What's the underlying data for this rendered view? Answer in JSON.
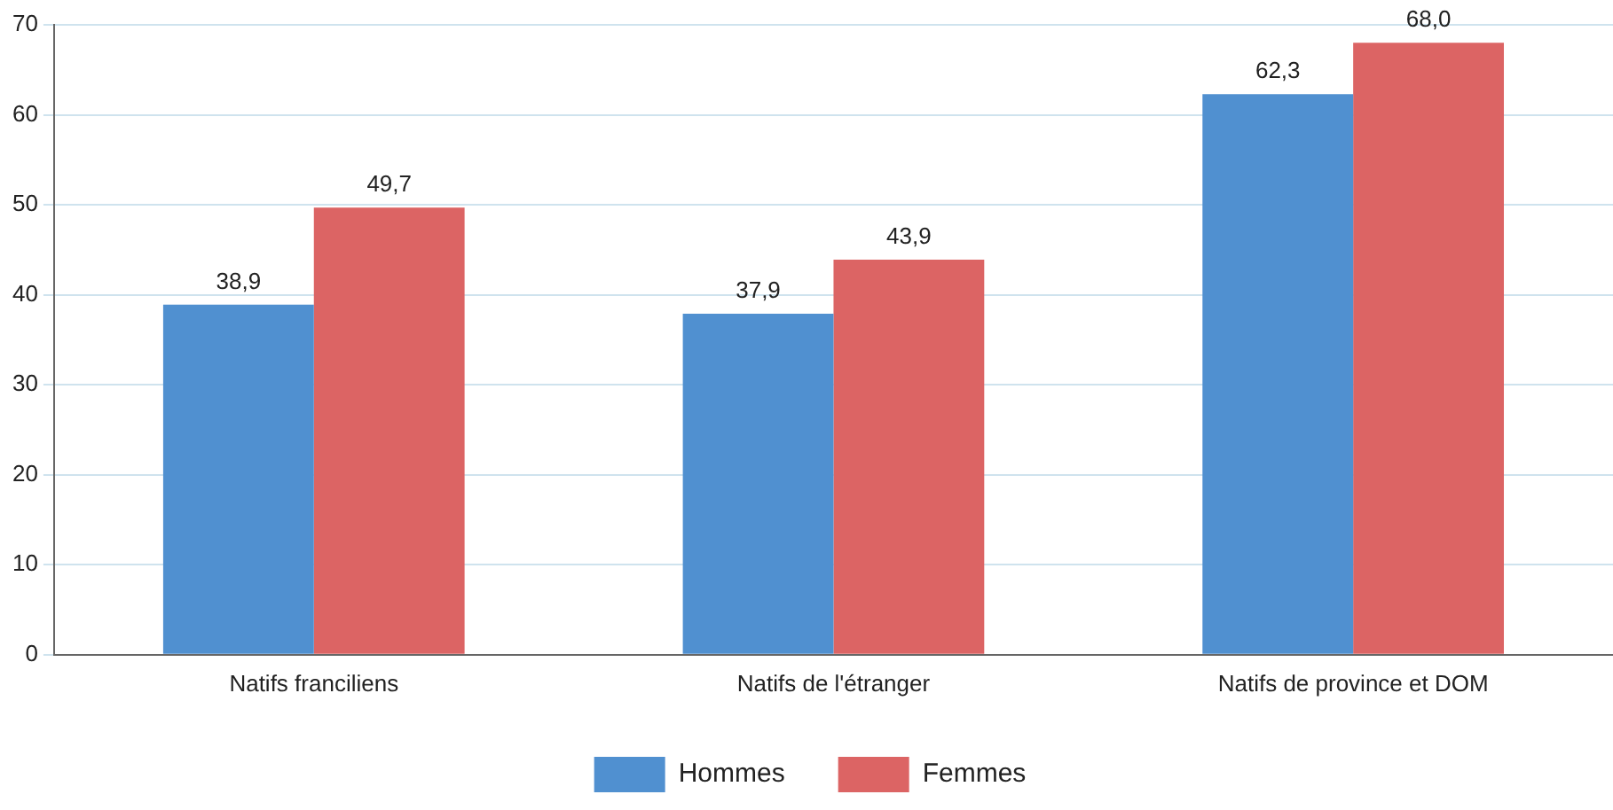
{
  "chart_data": {
    "type": "bar",
    "categories": [
      "Natifs franciliens",
      "Natifs de l'étranger",
      "Natifs de province et DOM"
    ],
    "series": [
      {
        "name": "Hommes",
        "color": "#5090d0",
        "values": [
          38.9,
          37.9,
          62.3
        ],
        "value_labels": [
          "38,9",
          "37,9",
          "62,3"
        ]
      },
      {
        "name": "Femmes",
        "color": "#dc6464",
        "values": [
          49.7,
          43.9,
          68.0
        ],
        "value_labels": [
          "49,7",
          "43,9",
          "68,0"
        ]
      }
    ],
    "ylim": [
      0,
      70
    ],
    "yticks": [
      0,
      10,
      20,
      30,
      40,
      50,
      60,
      70
    ],
    "grid": "y",
    "legend": "bottom"
  }
}
